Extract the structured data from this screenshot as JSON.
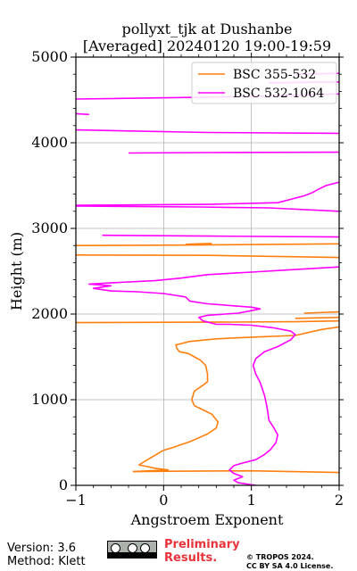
{
  "chart_data": {
    "type": "line",
    "title": "pollyxt_tjk at Dushanbe",
    "subtitle": "[Averaged] 20240120 19:00-19:59",
    "xlabel": "Angstroem Exponent",
    "ylabel": "Height (m)",
    "xlim": [
      -1,
      2
    ],
    "ylim": [
      0,
      5000
    ],
    "xticks": [
      "−1",
      "0",
      "1",
      "2"
    ],
    "yticks": [
      "0",
      "1000",
      "2000",
      "3000",
      "4000",
      "5000"
    ],
    "grid": true,
    "legend_position": "top-right",
    "series": [
      {
        "name": "BSC 355-532",
        "color": "#ff7f0e",
        "segments": [
          [
            [
              -0.35,
              160
            ],
            [
              0.05,
              165
            ],
            [
              1.0,
              170
            ],
            [
              2.0,
              150
            ]
          ],
          [
            [
              -0.35,
              160
            ],
            [
              0.05,
              180
            ],
            [
              -0.1,
              200
            ],
            [
              -0.28,
              240
            ],
            [
              -0.15,
              320
            ],
            [
              0.0,
              410
            ],
            [
              0.1,
              440
            ],
            [
              0.3,
              510
            ],
            [
              0.5,
              600
            ],
            [
              0.6,
              670
            ],
            [
              0.62,
              740
            ],
            [
              0.55,
              830
            ],
            [
              0.45,
              880
            ],
            [
              0.35,
              930
            ],
            [
              0.32,
              1000
            ],
            [
              0.35,
              1100
            ],
            [
              0.45,
              1170
            ],
            [
              0.5,
              1210
            ],
            [
              0.5,
              1300
            ],
            [
              0.48,
              1400
            ],
            [
              0.42,
              1460
            ],
            [
              0.35,
              1500
            ],
            [
              0.28,
              1540
            ],
            [
              0.18,
              1560
            ],
            [
              0.15,
              1600
            ],
            [
              0.14,
              1640
            ],
            [
              0.3,
              1680
            ],
            [
              0.6,
              1710
            ],
            [
              1.0,
              1730
            ],
            [
              1.5,
              1750
            ],
            [
              1.8,
              1820
            ],
            [
              2.0,
              1850
            ]
          ],
          [
            [
              1.5,
              1950
            ],
            [
              2.0,
              1960
            ]
          ],
          [
            [
              -1.0,
              1900
            ],
            [
              0.5,
              1905
            ],
            [
              1.5,
              1910
            ],
            [
              2.0,
              1920
            ]
          ],
          [
            [
              1.6,
              2010
            ],
            [
              2.0,
              2025
            ]
          ],
          [
            [
              -1.0,
              2690
            ],
            [
              0.5,
              2685
            ],
            [
              2.0,
              2660
            ]
          ],
          [
            [
              -1.0,
              2800
            ],
            [
              0.2,
              2805
            ],
            [
              2.0,
              2820
            ]
          ],
          [
            [
              0.25,
              2815
            ],
            [
              0.55,
              2825
            ]
          ]
        ]
      },
      {
        "name": "BSC 532-1064",
        "color": "#ff00ff",
        "segments": [
          [
            [
              1.05,
              0
            ],
            [
              0.85,
              30
            ],
            [
              0.8,
              60
            ],
            [
              0.9,
              100
            ],
            [
              0.8,
              140
            ],
            [
              0.75,
              180
            ],
            [
              0.8,
              230
            ],
            [
              0.9,
              260
            ],
            [
              1.05,
              300
            ],
            [
              1.15,
              360
            ],
            [
              1.22,
              420
            ],
            [
              1.28,
              500
            ],
            [
              1.3,
              590
            ],
            [
              1.25,
              680
            ],
            [
              1.2,
              760
            ],
            [
              1.18,
              900
            ],
            [
              1.15,
              1050
            ],
            [
              1.1,
              1200
            ],
            [
              1.05,
              1300
            ],
            [
              1.02,
              1400
            ],
            [
              1.05,
              1480
            ],
            [
              1.15,
              1560
            ],
            [
              1.3,
              1620
            ],
            [
              1.45,
              1700
            ],
            [
              1.5,
              1760
            ],
            [
              1.45,
              1800
            ],
            [
              1.25,
              1840
            ],
            [
              1.0,
              1870
            ],
            [
              0.75,
              1880
            ],
            [
              0.6,
              1880
            ],
            [
              0.45,
              1920
            ],
            [
              0.4,
              1960
            ],
            [
              0.5,
              1985
            ],
            [
              0.7,
              2000
            ],
            [
              0.85,
              2010
            ],
            [
              1.0,
              2040
            ],
            [
              1.1,
              2060
            ],
            [
              1.0,
              2080
            ],
            [
              0.5,
              2120
            ],
            [
              0.3,
              2150
            ],
            [
              0.25,
              2200
            ],
            [
              0.0,
              2240
            ],
            [
              -0.3,
              2260
            ],
            [
              -0.6,
              2270
            ],
            [
              -0.8,
              2300
            ],
            [
              -0.6,
              2330
            ],
            [
              -0.85,
              2350
            ],
            [
              -0.5,
              2370
            ],
            [
              -0.1,
              2390
            ],
            [
              0.2,
              2420
            ],
            [
              0.5,
              2460
            ],
            [
              1.0,
              2490
            ],
            [
              1.5,
              2520
            ],
            [
              2.0,
              2550
            ]
          ],
          [
            [
              -0.7,
              2920
            ],
            [
              0.5,
              2910
            ],
            [
              2.0,
              2900
            ]
          ],
          [
            [
              -1.0,
              3260
            ],
            [
              0.4,
              3250
            ],
            [
              1.2,
              3240
            ],
            [
              2.0,
              3200
            ]
          ],
          [
            [
              -1.0,
              3270
            ],
            [
              0.5,
              3280
            ],
            [
              1.3,
              3300
            ],
            [
              1.6,
              3380
            ],
            [
              1.7,
              3420
            ],
            [
              1.75,
              3450
            ],
            [
              1.85,
              3500
            ],
            [
              2.0,
              3540
            ]
          ],
          [
            [
              -0.4,
              3880
            ],
            [
              0.5,
              3885
            ],
            [
              2.0,
              3890
            ]
          ],
          [
            [
              -1.0,
              4150
            ],
            [
              0.5,
              4120
            ],
            [
              2.0,
              4110
            ]
          ],
          [
            [
              -1.0,
              4340
            ],
            [
              -0.85,
              4330
            ]
          ],
          [
            [
              -1.0,
              4510
            ],
            [
              1.0,
              4540
            ],
            [
              2.0,
              4570
            ]
          ],
          [
            [
              1.2,
              4700
            ],
            [
              2.0,
              4710
            ]
          ],
          [
            [
              1.5,
              4800
            ],
            [
              2.0,
              4810
            ]
          ]
        ]
      }
    ]
  },
  "footer": {
    "version": "Version: 3.6",
    "method": "Method: Klett",
    "preliminary_line1": "Preliminary",
    "preliminary_line2": "Results.",
    "copyright_line1": "© TROPOS 2024.",
    "copyright_line2": "CC BY SA 4.0 License."
  }
}
